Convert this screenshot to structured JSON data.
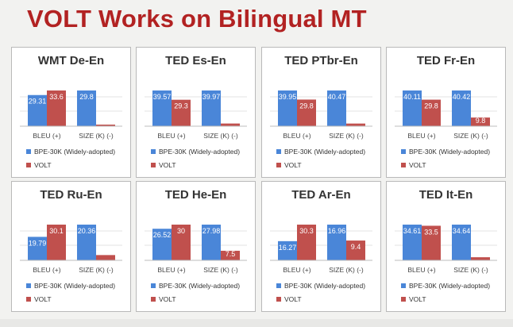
{
  "slide": {
    "title": "VOLT Works on Bilingual MT"
  },
  "colors": {
    "bpe": "#4a86d8",
    "volt": "#c0504d",
    "title": "#b22222"
  },
  "chart_data": [
    {
      "type": "bar",
      "title": "WMT De-En",
      "categories": [
        "BLEU (+)",
        "SIZE (K) (-)"
      ],
      "series": [
        {
          "name": "BPE-30K (Widely-adopted)",
          "values": [
            29.31,
            29.8
          ],
          "labels": [
            "29.31",
            "29.8"
          ]
        },
        {
          "name": "VOLT",
          "values": [
            33.6,
            1.0
          ],
          "labels": [
            "33.6",
            ""
          ]
        }
      ],
      "scale": "per-category"
    },
    {
      "type": "bar",
      "title": "TED Es-En",
      "categories": [
        "BLEU (+)",
        "SIZE (K) (-)"
      ],
      "series": [
        {
          "name": "BPE-30K (Widely-adopted)",
          "values": [
            39.57,
            39.97
          ],
          "labels": [
            "39.57",
            "39.97"
          ]
        },
        {
          "name": "VOLT",
          "values": [
            29.3,
            3.0
          ],
          "labels": [
            "29.3",
            ""
          ]
        }
      ],
      "scale": "per-category"
    },
    {
      "type": "bar",
      "title": "TED PTbr-En",
      "categories": [
        "BLEU (+)",
        "SIZE (K) (-)"
      ],
      "series": [
        {
          "name": "BPE-30K (Widely-adopted)",
          "values": [
            39.95,
            40.47
          ],
          "labels": [
            "39.95",
            "40.47"
          ]
        },
        {
          "name": "VOLT",
          "values": [
            29.8,
            3.0
          ],
          "labels": [
            "29.8",
            ""
          ]
        }
      ],
      "scale": "per-category"
    },
    {
      "type": "bar",
      "title": "TED Fr-En",
      "categories": [
        "BLEU (+)",
        "SIZE (K) (-)"
      ],
      "series": [
        {
          "name": "BPE-30K (Widely-adopted)",
          "values": [
            40.11,
            40.42
          ],
          "labels": [
            "40.11",
            "40.42"
          ]
        },
        {
          "name": "VOLT",
          "values": [
            29.8,
            9.8
          ],
          "labels": [
            "29.8",
            "9.8"
          ]
        }
      ],
      "scale": "per-category"
    },
    {
      "type": "bar",
      "title": "TED Ru-En",
      "categories": [
        "BLEU (+)",
        "SIZE (K) (-)"
      ],
      "series": [
        {
          "name": "BPE-30K (Widely-adopted)",
          "values": [
            19.79,
            20.36
          ],
          "labels": [
            "19.79",
            "20.36"
          ]
        },
        {
          "name": "VOLT",
          "values": [
            30.1,
            3.0
          ],
          "labels": [
            "30.1",
            ""
          ]
        }
      ],
      "scale": "per-category"
    },
    {
      "type": "bar",
      "title": "TED He-En",
      "categories": [
        "BLEU (+)",
        "SIZE (K) (-)"
      ],
      "series": [
        {
          "name": "BPE-30K (Widely-adopted)",
          "values": [
            26.52,
            27.98
          ],
          "labels": [
            "26.52",
            "27.98"
          ]
        },
        {
          "name": "VOLT",
          "values": [
            30.0,
            7.5
          ],
          "labels": [
            "30",
            "7.5"
          ]
        }
      ],
      "scale": "per-category"
    },
    {
      "type": "bar",
      "title": "TED Ar-En",
      "categories": [
        "BLEU (+)",
        "SIZE (K) (-)"
      ],
      "series": [
        {
          "name": "BPE-30K (Widely-adopted)",
          "values": [
            16.27,
            16.96
          ],
          "labels": [
            "16.27",
            "16.96"
          ]
        },
        {
          "name": "VOLT",
          "values": [
            30.3,
            9.4
          ],
          "labels": [
            "30.3",
            "9.4"
          ]
        }
      ],
      "scale": "per-category"
    },
    {
      "type": "bar",
      "title": "TED It-En",
      "categories": [
        "BLEU (+)",
        "SIZE (K) (-)"
      ],
      "series": [
        {
          "name": "BPE-30K (Widely-adopted)",
          "values": [
            34.61,
            34.64
          ],
          "labels": [
            "34.61",
            "34.64"
          ]
        },
        {
          "name": "VOLT",
          "values": [
            33.5,
            3.0
          ],
          "labels": [
            "33.5",
            ""
          ]
        }
      ],
      "scale": "per-category"
    }
  ]
}
